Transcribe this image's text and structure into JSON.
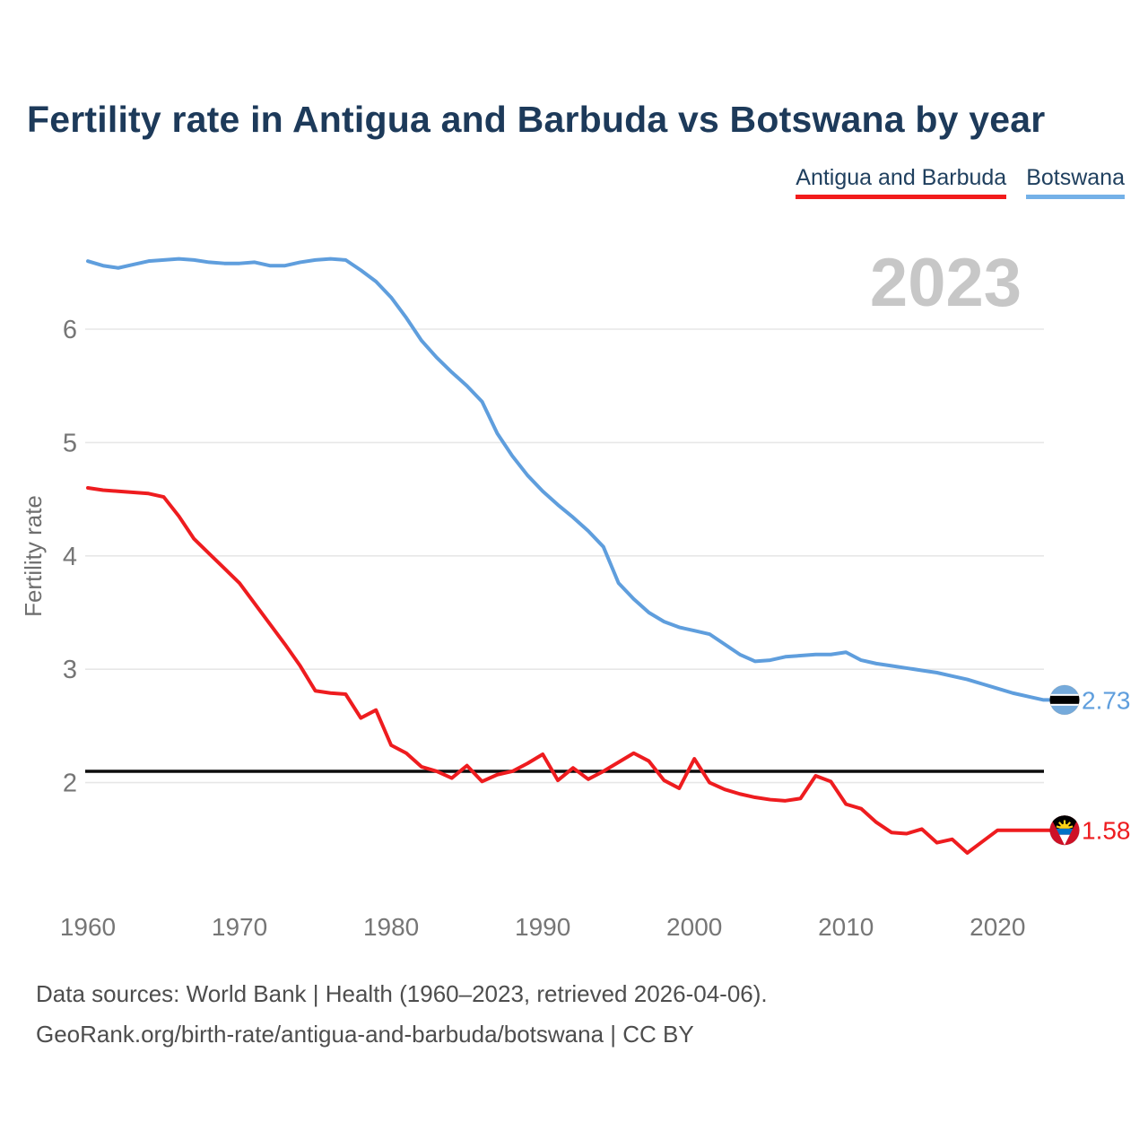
{
  "title": "Fertility rate in Antigua and Barbuda vs Botswana by year",
  "watermark": "2023",
  "legend": {
    "items": [
      {
        "label": "Antigua and Barbuda",
        "color": "#f21b1b"
      },
      {
        "label": "Botswana",
        "color": "#74b1e8"
      }
    ]
  },
  "footer": {
    "line1": "Data sources: World Bank | Health (1960–2023, retrieved 2026-04-06).",
    "line2": "GeoRank.org/birth-rate/antigua-and-barbuda/botswana | CC BY"
  },
  "chart_data": {
    "type": "line",
    "title": "Fertility rate in Antigua and Barbuda vs Botswana by year",
    "xlabel": "",
    "ylabel": "Fertility rate",
    "grid": "horizontal",
    "ylim": [
      1.2,
      6.8
    ],
    "yticks": [
      2,
      3,
      4,
      5,
      6
    ],
    "xticks": [
      1960,
      1970,
      1980,
      1990,
      2000,
      2010,
      2020
    ],
    "reference_line": {
      "value": 2.1,
      "color": "#0d0d0d"
    },
    "x": [
      1960,
      1961,
      1962,
      1963,
      1964,
      1965,
      1966,
      1967,
      1968,
      1969,
      1970,
      1971,
      1972,
      1973,
      1974,
      1975,
      1976,
      1977,
      1978,
      1979,
      1980,
      1981,
      1982,
      1983,
      1984,
      1985,
      1986,
      1987,
      1988,
      1989,
      1990,
      1991,
      1992,
      1993,
      1994,
      1995,
      1996,
      1997,
      1998,
      1999,
      2000,
      2001,
      2002,
      2003,
      2004,
      2005,
      2006,
      2007,
      2008,
      2009,
      2010,
      2011,
      2012,
      2013,
      2014,
      2015,
      2016,
      2017,
      2018,
      2019,
      2020,
      2021,
      2022,
      2023
    ],
    "series": [
      {
        "name": "Antigua and Barbuda",
        "color": "#ee1c1f",
        "flag": "antigua",
        "end_label": "1.58",
        "values": [
          4.6,
          4.58,
          4.57,
          4.56,
          4.55,
          4.52,
          4.35,
          4.15,
          4.02,
          3.89,
          3.76,
          3.58,
          3.4,
          3.22,
          3.03,
          2.81,
          2.79,
          2.78,
          2.57,
          2.64,
          2.33,
          2.26,
          2.14,
          2.1,
          2.04,
          2.15,
          2.01,
          2.07,
          2.1,
          2.17,
          2.25,
          2.02,
          2.13,
          2.03,
          2.1,
          2.18,
          2.26,
          2.19,
          2.02,
          1.95,
          2.21,
          2.0,
          1.94,
          1.9,
          1.87,
          1.85,
          1.84,
          1.86,
          2.06,
          2.01,
          1.81,
          1.77,
          1.65,
          1.56,
          1.55,
          1.59,
          1.47,
          1.5,
          1.38,
          1.48,
          1.58,
          1.58,
          1.58,
          1.58
        ]
      },
      {
        "name": "Botswana",
        "color": "#5f9edd",
        "flag": "botswana",
        "end_label": "2.73",
        "values": [
          6.6,
          6.56,
          6.54,
          6.57,
          6.6,
          6.61,
          6.62,
          6.61,
          6.59,
          6.58,
          6.58,
          6.59,
          6.56,
          6.56,
          6.59,
          6.61,
          6.62,
          6.61,
          6.52,
          6.42,
          6.28,
          6.1,
          5.9,
          5.75,
          5.62,
          5.5,
          5.36,
          5.08,
          4.88,
          4.71,
          4.57,
          4.45,
          4.34,
          4.22,
          4.08,
          3.76,
          3.62,
          3.5,
          3.42,
          3.37,
          3.34,
          3.31,
          3.22,
          3.13,
          3.07,
          3.08,
          3.11,
          3.12,
          3.13,
          3.13,
          3.15,
          3.08,
          3.05,
          3.03,
          3.01,
          2.99,
          2.97,
          2.94,
          2.91,
          2.87,
          2.83,
          2.79,
          2.76,
          2.73
        ]
      }
    ]
  }
}
